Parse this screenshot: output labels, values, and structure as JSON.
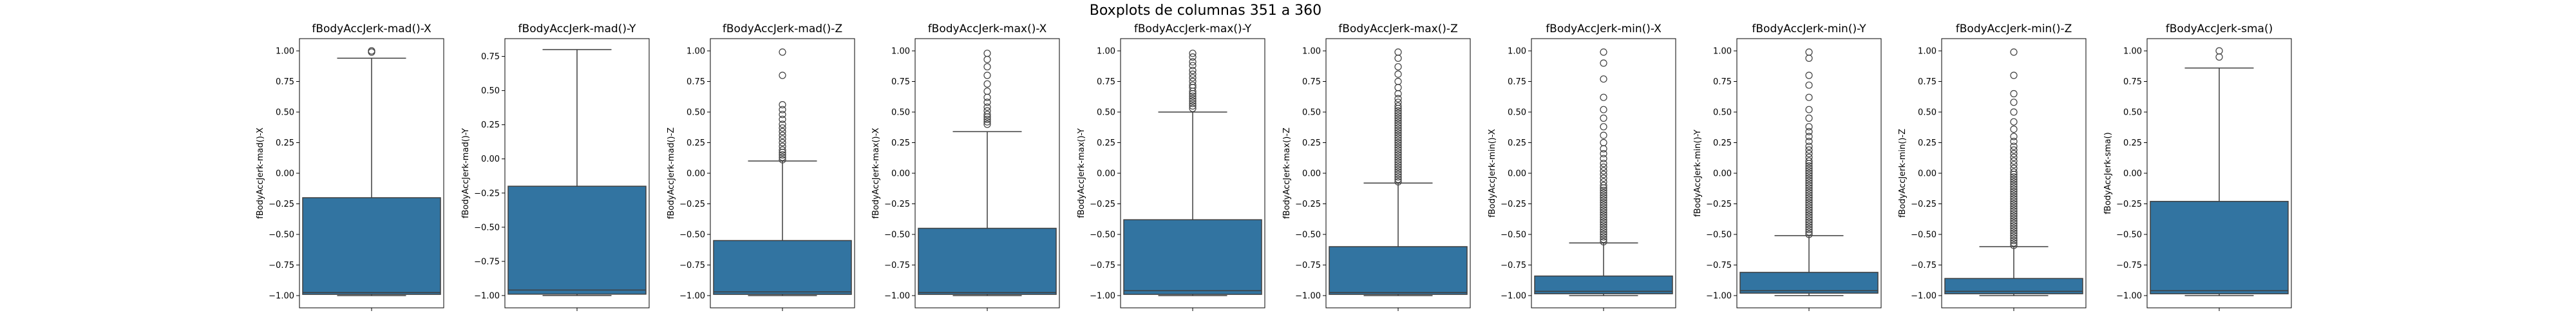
{
  "figure": {
    "title": "Boxplots de columnas 351 a 360"
  },
  "colors": {
    "box_fill": "#3274a1",
    "line": "#3f3f3f",
    "frame": "#000000"
  },
  "chart_data": [
    {
      "type": "box",
      "title": "fBodyAccJerk-mad()-X",
      "ylabel": "fBodyAccJerk-mad()-X",
      "ylim": [
        -1.1,
        1.1
      ],
      "yticks": [
        -1.0,
        -0.75,
        -0.5,
        -0.25,
        0.0,
        0.25,
        0.5,
        0.75,
        1.0
      ],
      "ytick_labels": [
        "−1.00",
        "−0.75",
        "−0.50",
        "−0.25",
        "0.00",
        "0.25",
        "0.50",
        "0.75",
        "1.00"
      ],
      "q1": -0.99,
      "median": -0.975,
      "q3": -0.2,
      "whisker_low": -1.0,
      "whisker_high": 0.94,
      "outliers": [
        0.99,
        1.0
      ]
    },
    {
      "type": "box",
      "title": "fBodyAccJerk-mad()-Y",
      "ylabel": "fBodyAccJerk-mad()-Y",
      "ylim": [
        -1.09,
        0.88
      ],
      "yticks": [
        -1.0,
        -0.75,
        -0.5,
        -0.25,
        0.0,
        0.25,
        0.5,
        0.75
      ],
      "ytick_labels": [
        "−1.00",
        "−0.75",
        "−0.50",
        "−0.25",
        "0.00",
        "0.25",
        "0.50",
        "0.75"
      ],
      "q1": -0.99,
      "median": -0.96,
      "q3": -0.2,
      "whisker_low": -1.0,
      "whisker_high": 0.8,
      "outliers": []
    },
    {
      "type": "box",
      "title": "fBodyAccJerk-mad()-Z",
      "ylabel": "fBodyAccJerk-mad()-Z",
      "ylim": [
        -1.1,
        1.1
      ],
      "yticks": [
        -1.0,
        -0.75,
        -0.5,
        -0.25,
        0.0,
        0.25,
        0.5,
        0.75,
        1.0
      ],
      "ytick_labels": [
        "−1.00",
        "−0.75",
        "−0.50",
        "−0.25",
        "0.00",
        "0.25",
        "0.50",
        "0.75",
        "1.00"
      ],
      "q1": -0.99,
      "median": -0.97,
      "q3": -0.55,
      "whisker_low": -1.0,
      "whisker_high": 0.1,
      "outliers": [
        0.11,
        0.13,
        0.15,
        0.17,
        0.19,
        0.22,
        0.25,
        0.28,
        0.31,
        0.34,
        0.37,
        0.4,
        0.44,
        0.48,
        0.52,
        0.56,
        0.8,
        0.99
      ]
    },
    {
      "type": "box",
      "title": "fBodyAccJerk-max()-X",
      "ylabel": "fBodyAccJerk-max()-X",
      "ylim": [
        -1.1,
        1.1
      ],
      "yticks": [
        -1.0,
        -0.75,
        -0.5,
        -0.25,
        0.0,
        0.25,
        0.5,
        0.75,
        1.0
      ],
      "ytick_labels": [
        "−1.00",
        "−0.75",
        "−0.50",
        "−0.25",
        "0.00",
        "0.25",
        "0.50",
        "0.75",
        "1.00"
      ],
      "q1": -0.99,
      "median": -0.975,
      "q3": -0.45,
      "whisker_low": -1.0,
      "whisker_high": 0.34,
      "outliers": [
        0.4,
        0.42,
        0.44,
        0.46,
        0.48,
        0.51,
        0.54,
        0.58,
        0.62,
        0.67,
        0.73,
        0.8,
        0.87,
        0.93,
        0.98
      ]
    },
    {
      "type": "box",
      "title": "fBodyAccJerk-max()-Y",
      "ylabel": "fBodyAccJerk-max()-Y",
      "ylim": [
        -1.1,
        1.1
      ],
      "yticks": [
        -1.0,
        -0.75,
        -0.5,
        -0.25,
        0.0,
        0.25,
        0.5,
        0.75,
        1.0
      ],
      "ytick_labels": [
        "−1.00",
        "−0.75",
        "−0.50",
        "−0.25",
        "0.00",
        "0.25",
        "0.50",
        "0.75",
        "1.00"
      ],
      "q1": -0.99,
      "median": -0.96,
      "q3": -0.38,
      "whisker_low": -1.0,
      "whisker_high": 0.5,
      "outliers": [
        0.53,
        0.55,
        0.57,
        0.59,
        0.61,
        0.63,
        0.65,
        0.67,
        0.7,
        0.72,
        0.75,
        0.78,
        0.81,
        0.84,
        0.88,
        0.91,
        0.95,
        0.98
      ]
    },
    {
      "type": "box",
      "title": "fBodyAccJerk-max()-Z",
      "ylabel": "fBodyAccJerk-max()-Z",
      "ylim": [
        -1.1,
        1.1
      ],
      "yticks": [
        -1.0,
        -0.75,
        -0.5,
        -0.25,
        0.0,
        0.25,
        0.5,
        0.75,
        1.0
      ],
      "ytick_labels": [
        "−1.00",
        "−0.75",
        "−0.50",
        "−0.25",
        "0.00",
        "0.25",
        "0.50",
        "0.75",
        "1.00"
      ],
      "q1": -0.99,
      "median": -0.975,
      "q3": -0.6,
      "whisker_low": -1.0,
      "whisker_high": -0.08,
      "outliers": [
        -0.07,
        -0.05,
        -0.03,
        -0.01,
        0.01,
        0.03,
        0.05,
        0.07,
        0.09,
        0.11,
        0.13,
        0.15,
        0.17,
        0.19,
        0.21,
        0.23,
        0.25,
        0.27,
        0.29,
        0.31,
        0.33,
        0.35,
        0.37,
        0.39,
        0.41,
        0.43,
        0.45,
        0.47,
        0.49,
        0.51,
        0.53,
        0.55,
        0.58,
        0.61,
        0.65,
        0.7,
        0.75,
        0.81,
        0.87,
        0.94,
        0.99
      ]
    },
    {
      "type": "box",
      "title": "fBodyAccJerk-min()-X",
      "ylabel": "fBodyAccJerk-min()-X",
      "ylim": [
        -1.1,
        1.1
      ],
      "yticks": [
        -1.0,
        -0.75,
        -0.5,
        -0.25,
        0.0,
        0.25,
        0.5,
        0.75,
        1.0
      ],
      "ytick_labels": [
        "−1.00",
        "−0.75",
        "−0.50",
        "−0.25",
        "0.00",
        "0.25",
        "0.50",
        "0.75",
        "1.00"
      ],
      "q1": -0.985,
      "median": -0.965,
      "q3": -0.84,
      "whisker_low": -1.0,
      "whisker_high": -0.57,
      "outliers": [
        -0.56,
        -0.54,
        -0.52,
        -0.5,
        -0.48,
        -0.46,
        -0.44,
        -0.42,
        -0.4,
        -0.38,
        -0.36,
        -0.34,
        -0.32,
        -0.3,
        -0.28,
        -0.26,
        -0.24,
        -0.22,
        -0.2,
        -0.18,
        -0.16,
        -0.14,
        -0.12,
        -0.1,
        -0.07,
        -0.04,
        -0.01,
        0.02,
        0.05,
        0.08,
        0.12,
        0.16,
        0.2,
        0.25,
        0.31,
        0.38,
        0.45,
        0.52,
        0.62,
        0.77,
        0.9,
        0.99
      ]
    },
    {
      "type": "box",
      "title": "fBodyAccJerk-min()-Y",
      "ylabel": "fBodyAccJerk-min()-Y",
      "ylim": [
        -1.1,
        1.1
      ],
      "yticks": [
        -1.0,
        -0.75,
        -0.5,
        -0.25,
        0.0,
        0.25,
        0.5,
        0.75,
        1.0
      ],
      "ytick_labels": [
        "−1.00",
        "−0.75",
        "−0.50",
        "−0.25",
        "0.00",
        "0.25",
        "0.50",
        "0.75",
        "1.00"
      ],
      "q1": -0.98,
      "median": -0.96,
      "q3": -0.81,
      "whisker_low": -1.0,
      "whisker_high": -0.51,
      "outliers": [
        -0.5,
        -0.48,
        -0.46,
        -0.44,
        -0.42,
        -0.4,
        -0.38,
        -0.36,
        -0.34,
        -0.32,
        -0.3,
        -0.28,
        -0.26,
        -0.24,
        -0.22,
        -0.2,
        -0.18,
        -0.16,
        -0.14,
        -0.12,
        -0.1,
        -0.08,
        -0.06,
        -0.04,
        -0.02,
        0.0,
        0.02,
        0.04,
        0.06,
        0.08,
        0.1,
        0.13,
        0.16,
        0.19,
        0.22,
        0.26,
        0.3,
        0.34,
        0.38,
        0.45,
        0.52,
        0.62,
        0.72,
        0.8,
        0.94,
        0.99
      ]
    },
    {
      "type": "box",
      "title": "fBodyAccJerk-min()-Z",
      "ylabel": "fBodyAccJerk-min()-Z",
      "ylim": [
        -1.1,
        1.1
      ],
      "yticks": [
        -1.0,
        -0.75,
        -0.5,
        -0.25,
        0.0,
        0.25,
        0.5,
        0.75,
        1.0
      ],
      "ytick_labels": [
        "−1.00",
        "−0.75",
        "−0.50",
        "−0.25",
        "0.00",
        "0.25",
        "0.50",
        "0.75",
        "1.00"
      ],
      "q1": -0.985,
      "median": -0.965,
      "q3": -0.86,
      "whisker_low": -1.0,
      "whisker_high": -0.6,
      "outliers": [
        -0.59,
        -0.57,
        -0.55,
        -0.53,
        -0.51,
        -0.49,
        -0.47,
        -0.45,
        -0.43,
        -0.41,
        -0.39,
        -0.37,
        -0.35,
        -0.33,
        -0.31,
        -0.29,
        -0.27,
        -0.25,
        -0.23,
        -0.21,
        -0.19,
        -0.17,
        -0.15,
        -0.13,
        -0.11,
        -0.09,
        -0.07,
        -0.05,
        -0.03,
        -0.01,
        0.01,
        0.04,
        0.07,
        0.1,
        0.13,
        0.16,
        0.19,
        0.22,
        0.26,
        0.3,
        0.36,
        0.42,
        0.5,
        0.58,
        0.65,
        0.8,
        0.99
      ]
    },
    {
      "type": "box",
      "title": "fBodyAccJerk-sma()",
      "ylabel": "fBodyAccJerk-sma()",
      "ylim": [
        -1.1,
        1.1
      ],
      "yticks": [
        -1.0,
        -0.75,
        -0.5,
        -0.25,
        0.0,
        0.25,
        0.5,
        0.75,
        1.0
      ],
      "ytick_labels": [
        "−1.00",
        "−0.75",
        "−0.50",
        "−0.25",
        "0.00",
        "0.25",
        "0.50",
        "0.75",
        "1.00"
      ],
      "q1": -0.985,
      "median": -0.96,
      "q3": -0.23,
      "whisker_low": -1.0,
      "whisker_high": 0.86,
      "outliers": [
        0.95,
        1.0
      ]
    }
  ]
}
